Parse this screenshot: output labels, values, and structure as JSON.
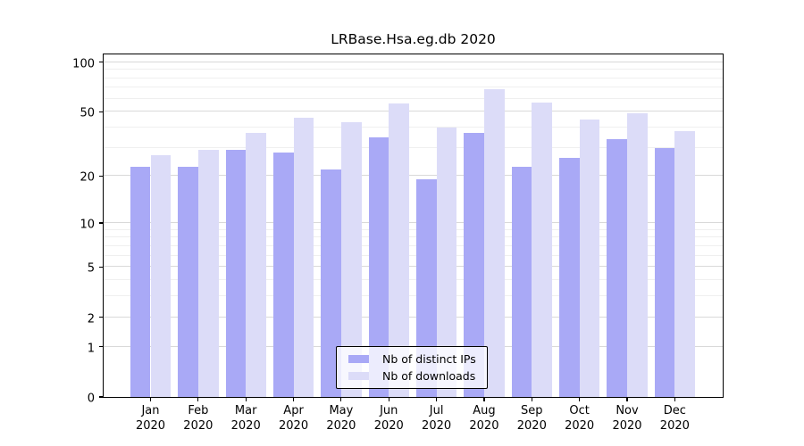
{
  "title": "LRBase.Hsa.eg.db 2020",
  "chart_data": {
    "type": "bar",
    "title": "LRBase.Hsa.eg.db 2020",
    "categories": [
      "Jan",
      "Feb",
      "Mar",
      "Apr",
      "May",
      "Jun",
      "Jul",
      "Aug",
      "Sep",
      "Oct",
      "Nov",
      "Dec"
    ],
    "category_year": "2020",
    "series": [
      {
        "name": "Nb of distinct IPs",
        "color": "#a9a9f6",
        "values": [
          23,
          23,
          29,
          28,
          22,
          35,
          19,
          37,
          23,
          26,
          34,
          30
        ]
      },
      {
        "name": "Nb of downloads",
        "color": "#dcdcf8",
        "values": [
          27,
          29,
          37,
          46,
          43,
          56,
          40,
          69,
          57,
          45,
          49,
          38
        ]
      }
    ],
    "y_scale": "log1p",
    "ylim": [
      0,
      115
    ],
    "y_ticks": [
      0,
      1,
      2,
      5,
      10,
      20,
      50,
      100
    ],
    "y_minor_gridlines": [
      3,
      4,
      6,
      7,
      8,
      9,
      30,
      40,
      60,
      70,
      80,
      90
    ],
    "grid": "horizontal",
    "legend_position": "inside-bottom-center",
    "xlabel": "",
    "ylabel": ""
  },
  "colors": {
    "distinct_ips": "#a9a9f6",
    "downloads": "#dcdcf8",
    "grid_major": "#d9d9d9",
    "grid_minor": "#efefef",
    "axis": "#000000",
    "background": "#ffffff"
  }
}
